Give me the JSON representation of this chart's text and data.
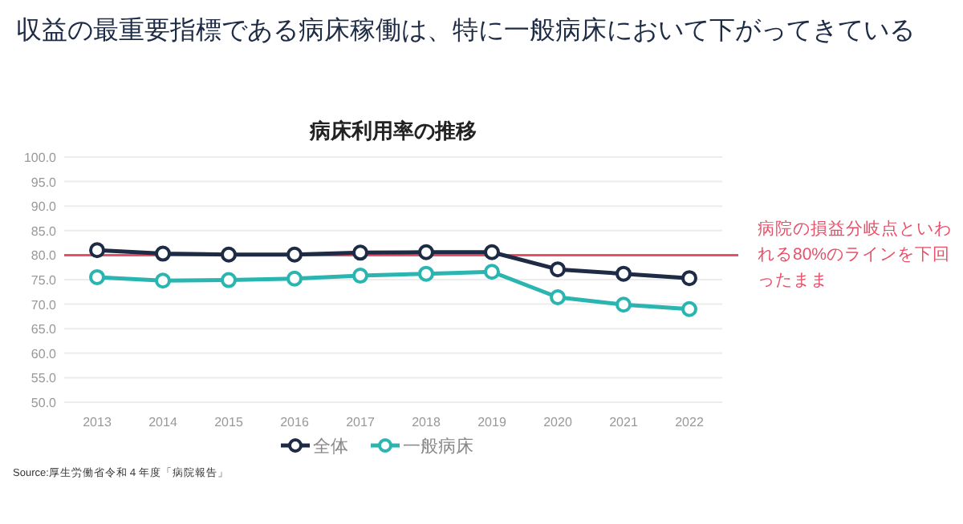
{
  "chart_data": {
    "type": "line",
    "title": "収益の最重要指標である病床稼働は、特に一般病床において下がってきている",
    "subtitle": "病床利用率の推移",
    "categories": [
      "2013",
      "2014",
      "2015",
      "2016",
      "2017",
      "2018",
      "2019",
      "2020",
      "2021",
      "2022"
    ],
    "series": [
      {
        "name": "全体",
        "color": "#1e2b45",
        "values": [
          81.0,
          80.3,
          80.1,
          80.1,
          80.5,
          80.6,
          80.6,
          77.1,
          76.2,
          75.3
        ]
      },
      {
        "name": "一般病床",
        "color": "#2bb5b0",
        "values": [
          75.5,
          74.8,
          74.9,
          75.2,
          75.8,
          76.2,
          76.6,
          71.4,
          69.9,
          69.0
        ]
      }
    ],
    "ylim": [
      50,
      100
    ],
    "yticks": [
      {
        "value": 50,
        "label": "50.0"
      },
      {
        "value": 55,
        "label": "55.0"
      },
      {
        "value": 60,
        "label": "60.0"
      },
      {
        "value": 65,
        "label": "65.0"
      },
      {
        "value": 70,
        "label": "70.0"
      },
      {
        "value": 75,
        "label": "75.0"
      },
      {
        "value": 80,
        "label": "80.0"
      },
      {
        "value": 85,
        "label": "85.0"
      },
      {
        "value": 90,
        "label": "90.0"
      },
      {
        "value": 95,
        "label": "95.0"
      },
      {
        "value": 100,
        "label": "100.0"
      }
    ],
    "ref_lines": [
      {
        "axis": "y",
        "value": 80,
        "label": "病院の損益分岐点といわれる80%のラインを下回ったまま",
        "color": "#e8506a"
      }
    ],
    "annotations": [
      "Source:厚生労働省令和４年度「病院報告」"
    ],
    "grid": "y",
    "legend": "bottom",
    "marker": "circle",
    "line_style": "solid"
  }
}
